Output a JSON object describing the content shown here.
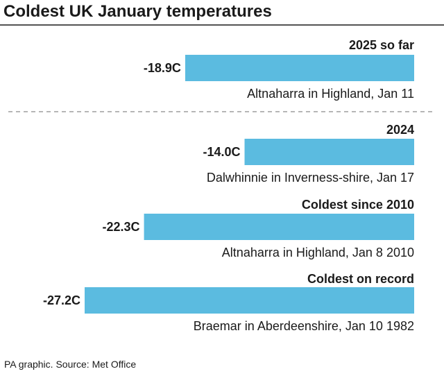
{
  "chart_data": {
    "type": "bar",
    "orientation": "horizontal",
    "title": "Coldest UK January temperatures",
    "unit": "C",
    "xlim": [
      -30,
      0
    ],
    "grid": false,
    "bar_color": "#5bbbe0",
    "bars": [
      {
        "heading": "2025 so far",
        "value": -18.9,
        "value_label": "-18.9C",
        "location": "Altnaharra in Highland, Jan 11"
      },
      {
        "heading": "2024",
        "value": -14.0,
        "value_label": "-14.0C",
        "location": "Dalwhinnie in Inverness-shire, Jan 17"
      },
      {
        "heading": "Coldest since 2010",
        "value": -22.3,
        "value_label": "-22.3C",
        "location": "Altnaharra in Highland, Jan 8 2010"
      },
      {
        "heading": "Coldest on record",
        "value": -27.2,
        "value_label": "-27.2C",
        "location": "Braemar in Aberdeenshire, Jan 10 1982"
      }
    ],
    "source": "PA graphic. Source: Met Office"
  }
}
